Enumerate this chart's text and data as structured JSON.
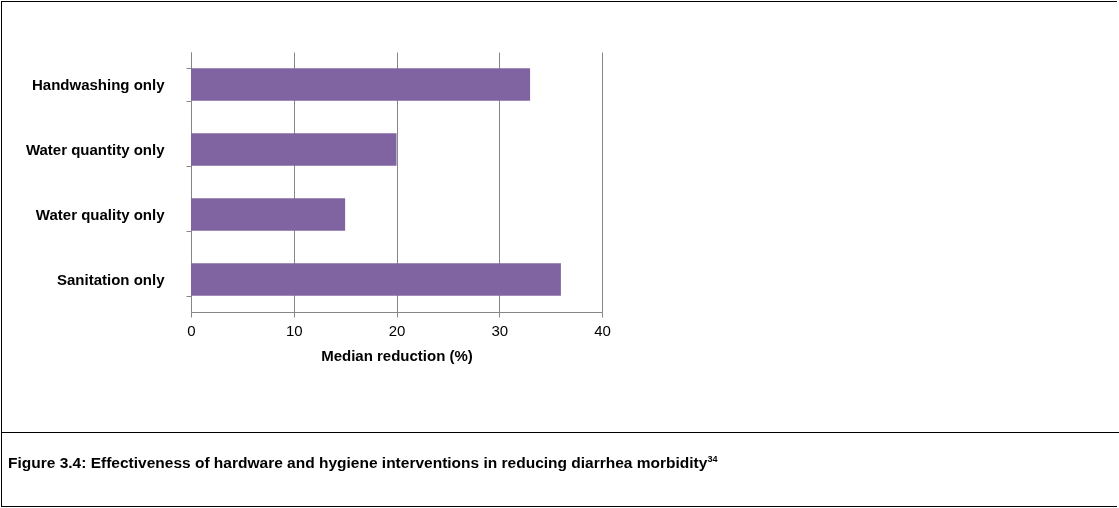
{
  "chart_data": {
    "type": "bar",
    "orientation": "horizontal",
    "title": "Figure 3.4: Effectiveness of hardware and hygiene interventions in reducing diarrhea morbidity$^{34}$",
    "xlabel": "Median reduction (%)",
    "categories": [
      "Handwashing only",
      "Water quantity only",
      "Water quality only",
      "Sanitation only"
    ],
    "values": [
      33,
      20,
      15,
      36
    ],
    "color": "#8064a2",
    "xlim": [
      0,
      40
    ],
    "xticks": [
      0,
      10,
      20,
      30,
      40
    ],
    "grid": "x"
  }
}
